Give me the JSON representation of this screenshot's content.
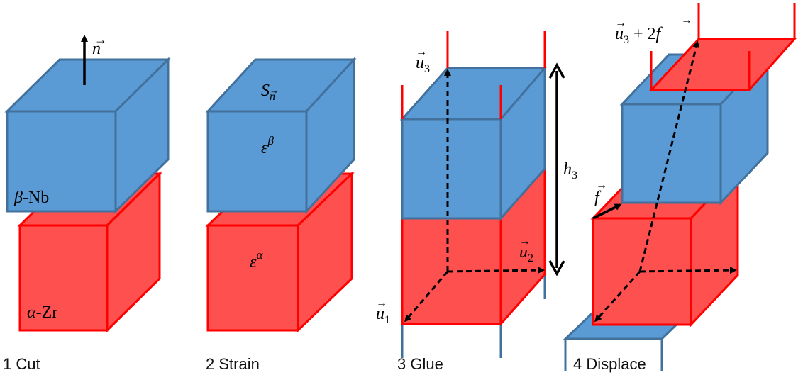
{
  "panels": [
    {
      "label": "1 Cut"
    },
    {
      "label": "2 Strain"
    },
    {
      "label": "3 Glue"
    },
    {
      "label": "4 Displace"
    }
  ],
  "symbols": {
    "normal": "n",
    "top_material": "β",
    "top_material_suffix": "-Nb",
    "bottom_material": "α",
    "bottom_material_suffix": "-Zr",
    "surface_S": "S",
    "surface_sub": "n",
    "eps": "ε",
    "eps_beta": "β",
    "eps_alpha": "α",
    "u3": "u",
    "u3_sub": "3",
    "u2": "u",
    "u2_sub": "2",
    "u1": "u",
    "u1_sub": "1",
    "h": "h",
    "h_sub": "3",
    "f": "f",
    "u3f_plus": " + 2",
    "u3f_f": "f"
  },
  "colors": {
    "blue_fill": "#5b9bd5",
    "blue_stroke": "#41719c",
    "red_fill": "#ff5050",
    "red_stroke": "#ff0000"
  }
}
